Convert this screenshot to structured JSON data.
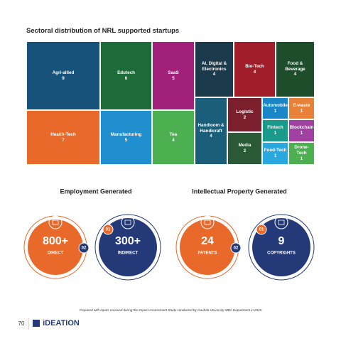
{
  "chart_data": {
    "type": "treemap",
    "title": "Sectoral distribution of NRL supported startups",
    "categories": [
      "Agri-allied",
      "Edutech",
      "SaaS",
      "AI, Digital & Electronics",
      "Bio-Tech",
      "Food & Beverage",
      "Health-Tech",
      "Manufacturing",
      "Tea",
      "Handloom & Handicraft",
      "Logistic",
      "Media",
      "Automobile",
      "E-waste",
      "Fintech",
      "Blockchain",
      "Food-Tech",
      "Drone-Tech"
    ],
    "values": [
      9,
      6,
      5,
      4,
      4,
      4,
      7,
      5,
      4,
      4,
      2,
      2,
      1,
      1,
      1,
      1,
      1,
      1
    ],
    "colors": [
      "#17527a",
      "#1e6b3a",
      "#a0207a",
      "#1b3a4b",
      "#a11d2a",
      "#1e4d2b",
      "#e8692a",
      "#1f8fd0",
      "#4caf50",
      "#1b5e7a",
      "#7a1f2b",
      "#2a5a35",
      "#1a86c8",
      "#e8823a",
      "#1a9a8a",
      "#a040a0",
      "#29a8e0",
      "#4caf50"
    ]
  },
  "employment": {
    "heading": "Employment Generated",
    "items": [
      {
        "badge": "02",
        "value": "800+",
        "label": "DIRECT"
      },
      {
        "badge": "01",
        "value": "300+",
        "label": "INDIRECT"
      }
    ]
  },
  "ip": {
    "heading": "Intellectual Property Generated",
    "items": [
      {
        "badge": "02",
        "value": "24",
        "label": "PATENTS"
      },
      {
        "badge": "01",
        "value": "9",
        "label": "COPYRIGHTS"
      }
    ]
  },
  "footnote": "Prepared with inputs received during the Impact Assessment Study conducted by Gauhati University MBA Department in 2025",
  "page_number": "70",
  "logo": "iDEATION"
}
